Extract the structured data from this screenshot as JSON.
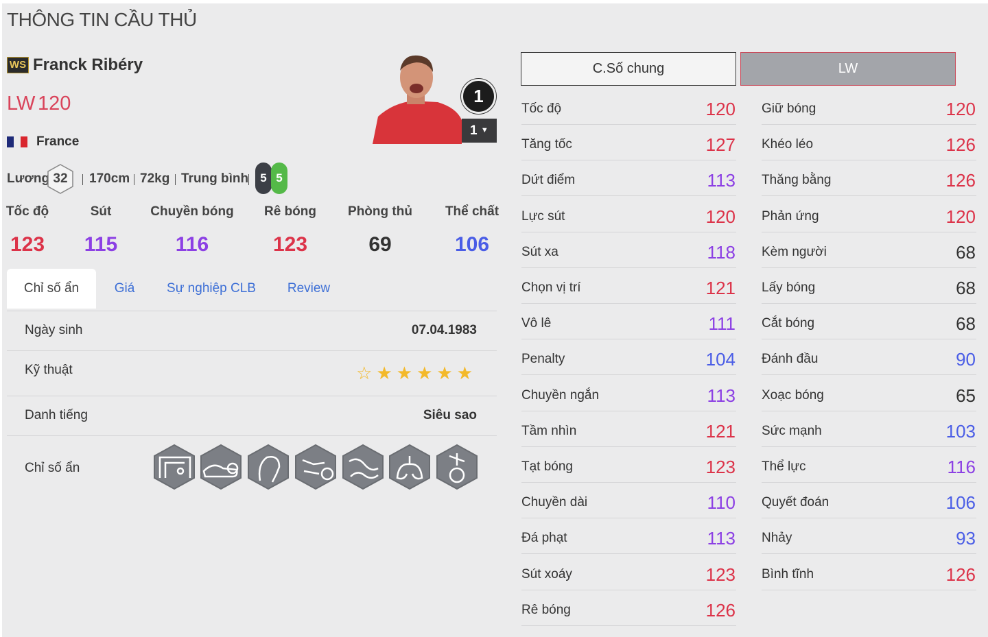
{
  "header": {
    "title": "THÔNG TIN CẦU THỦ"
  },
  "player": {
    "season": "WS",
    "name": "Franck Ribéry",
    "position": "LW",
    "rating": 120,
    "nation": "France",
    "level": 1,
    "upgrade": 1
  },
  "profile": {
    "salary_label": "Lương",
    "salary": 32,
    "height": "170cm",
    "weight": "72kg",
    "build": "Trung bình",
    "weak_foot": 5,
    "strong_foot": 5
  },
  "summary": [
    {
      "label": "Tốc độ",
      "value": 123
    },
    {
      "label": "Sút",
      "value": 115
    },
    {
      "label": "Chuyền bóng",
      "value": 116
    },
    {
      "label": "Rê bóng",
      "value": 123
    },
    {
      "label": "Phòng thủ",
      "value": 69
    },
    {
      "label": "Thể chất",
      "value": 106
    }
  ],
  "tabs": {
    "items": [
      "Chỉ số ẩn",
      "Giá",
      "Sự nghiệp CLB",
      "Review"
    ],
    "active": 0
  },
  "details": {
    "birth": {
      "label": "Ngày sinh",
      "value": "07.04.1983"
    },
    "skill": {
      "label": "Kỹ thuật",
      "stars": 5,
      "max": 6
    },
    "fame": {
      "label": "Danh tiếng",
      "value": "Siêu sao"
    },
    "traits": {
      "label": "Chỉ số ẩn"
    }
  },
  "stat_tabs": {
    "items": [
      "C.Số chung",
      "LW"
    ],
    "active": 1
  },
  "stats": {
    "left": [
      {
        "label": "Tốc độ",
        "value": 120
      },
      {
        "label": "Tăng tốc",
        "value": 127
      },
      {
        "label": "Dứt điểm",
        "value": 113
      },
      {
        "label": "Lực sút",
        "value": 120
      },
      {
        "label": "Sút xa",
        "value": 118
      },
      {
        "label": "Chọn vị trí",
        "value": 121
      },
      {
        "label": "Vô lê",
        "value": 111
      },
      {
        "label": "Penalty",
        "value": 104
      },
      {
        "label": "Chuyền ngắn",
        "value": 113
      },
      {
        "label": "Tầm nhìn",
        "value": 121
      },
      {
        "label": "Tạt bóng",
        "value": 123
      },
      {
        "label": "Chuyền dài",
        "value": 110
      },
      {
        "label": "Đá phạt",
        "value": 113
      },
      {
        "label": "Sút xoáy",
        "value": 123
      },
      {
        "label": "Rê bóng",
        "value": 126
      }
    ],
    "right": [
      {
        "label": "Giữ bóng",
        "value": 120
      },
      {
        "label": "Khéo léo",
        "value": 126
      },
      {
        "label": "Thăng bằng",
        "value": 126
      },
      {
        "label": "Phản ứng",
        "value": 120
      },
      {
        "label": "Kèm người",
        "value": 68
      },
      {
        "label": "Lấy bóng",
        "value": 68
      },
      {
        "label": "Cắt bóng",
        "value": 68
      },
      {
        "label": "Đánh đầu",
        "value": 90
      },
      {
        "label": "Xoạc bóng",
        "value": 65
      },
      {
        "label": "Sức mạnh",
        "value": 103
      },
      {
        "label": "Thể lực",
        "value": 116
      },
      {
        "label": "Quyết đoán",
        "value": 106
      },
      {
        "label": "Nhảy",
        "value": 93
      },
      {
        "label": "Bình tĩnh",
        "value": 126
      }
    ]
  }
}
